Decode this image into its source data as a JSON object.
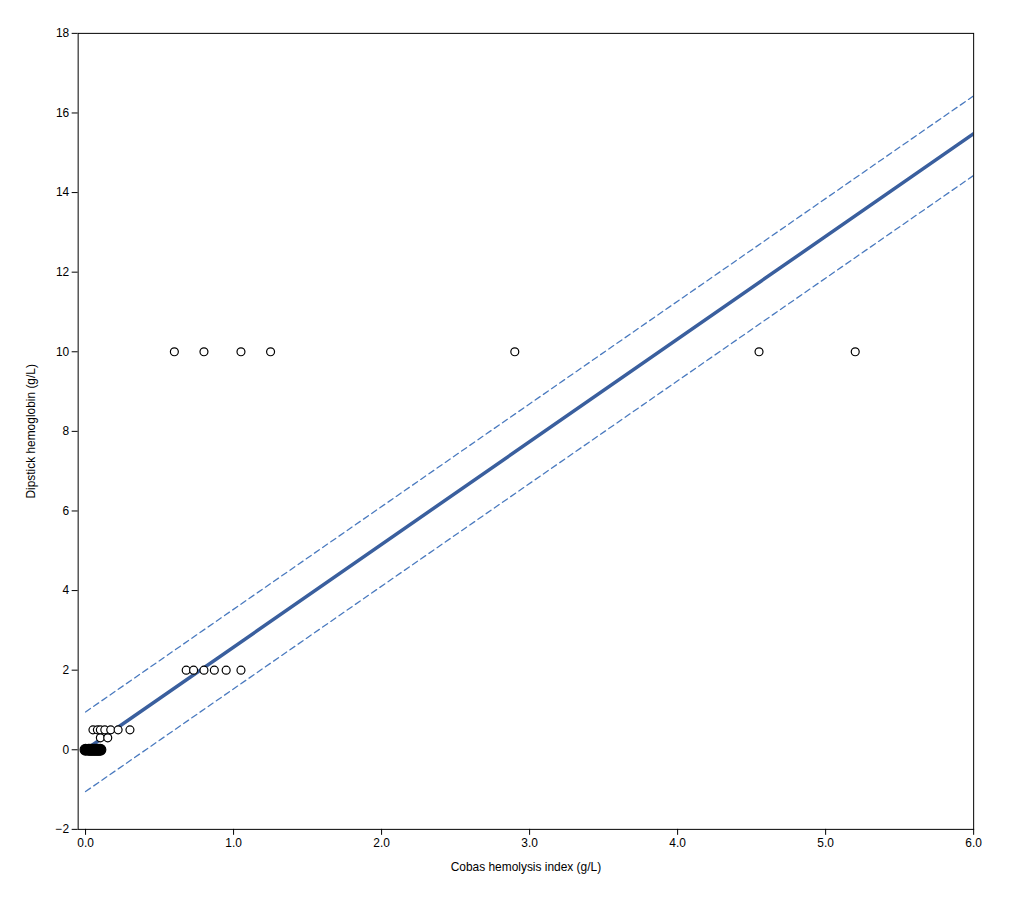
{
  "chart_data": {
    "type": "scatter",
    "xlabel": "Cobas hemolysis index (g/L)",
    "ylabel": "Dipstick hemoglobin (g/L)",
    "xlim": [
      -0.05,
      6
    ],
    "ylim": [
      -2,
      18
    ],
    "xticks": [
      0,
      1,
      2,
      3,
      4,
      5,
      6
    ],
    "yticks": [
      -2,
      0,
      2,
      4,
      6,
      8,
      10,
      12,
      14,
      16,
      18
    ],
    "grid": false,
    "series": [
      {
        "type": "line",
        "color": "#4a7abf",
        "line_style": "dashed",
        "x": [
          0,
          6
        ],
        "values": [
          -1.05,
          14.43
        ]
      },
      {
        "type": "line",
        "color": "#4a7abf",
        "line_style": "dashed",
        "x": [
          0,
          6
        ],
        "values": [
          0.95,
          16.43
        ]
      },
      {
        "type": "line",
        "color": "#3a5f9e",
        "line_style": "solid",
        "x": [
          0,
          6
        ],
        "values": [
          0,
          15.48
        ]
      },
      {
        "type": "scatter",
        "color": "black",
        "marker": "open_circle",
        "x": [
          0.05,
          0.08,
          0.1,
          0.13,
          0.17,
          0.22,
          0.3,
          0.1,
          0.15,
          0.68,
          0.73,
          0.8,
          0.87,
          0.95,
          1.05,
          0.6,
          0.8,
          1.05,
          1.25,
          2.9,
          4.55,
          5.2
        ],
        "values": [
          0.5,
          0.5,
          0.5,
          0.5,
          0.5,
          0.5,
          0.5,
          0.3,
          0.3,
          2.0,
          2.0,
          2.0,
          2.0,
          2.0,
          2.0,
          10.0,
          10.0,
          10.0,
          10.0,
          10.0,
          10.0,
          10.0
        ]
      },
      {
        "type": "scatter",
        "color": "black",
        "marker": "circle",
        "x": [
          0.0,
          0.02,
          0.03,
          0.04,
          0.05,
          0.06,
          0.07,
          0.08,
          0.09,
          0.1
        ],
        "values": [
          0.0,
          0.0,
          0.0,
          0.0,
          0.0,
          0.0,
          0.0,
          0.0,
          0.0,
          0.0
        ]
      }
    ]
  }
}
